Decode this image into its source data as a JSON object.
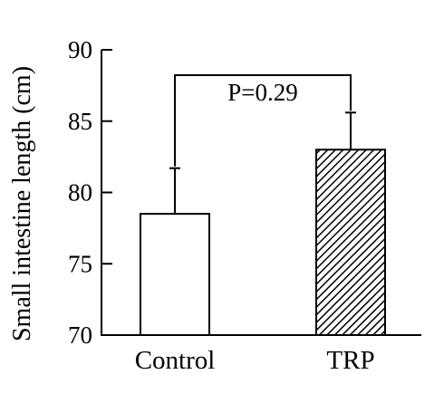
{
  "chart_data": {
    "type": "bar",
    "title": "",
    "xlabel": "",
    "ylabel": "Small intestine length (cm)",
    "ylim": [
      70,
      90
    ],
    "yticks": [
      70,
      75,
      80,
      85,
      90
    ],
    "categories": [
      "Control",
      "TRP"
    ],
    "values": [
      78.5,
      83.0
    ],
    "error_upper": [
      3.2,
      2.6
    ],
    "bar_fills": [
      "white",
      "hatched"
    ],
    "annotations": [
      {
        "text": "P=0.29",
        "between": [
          "Control",
          "TRP"
        ]
      }
    ],
    "grid": false,
    "legend": "none"
  },
  "colors": {
    "axis": "#000000",
    "bar_edge": "#000000",
    "bar_fill": "#ffffff",
    "hatch": "#000000"
  }
}
